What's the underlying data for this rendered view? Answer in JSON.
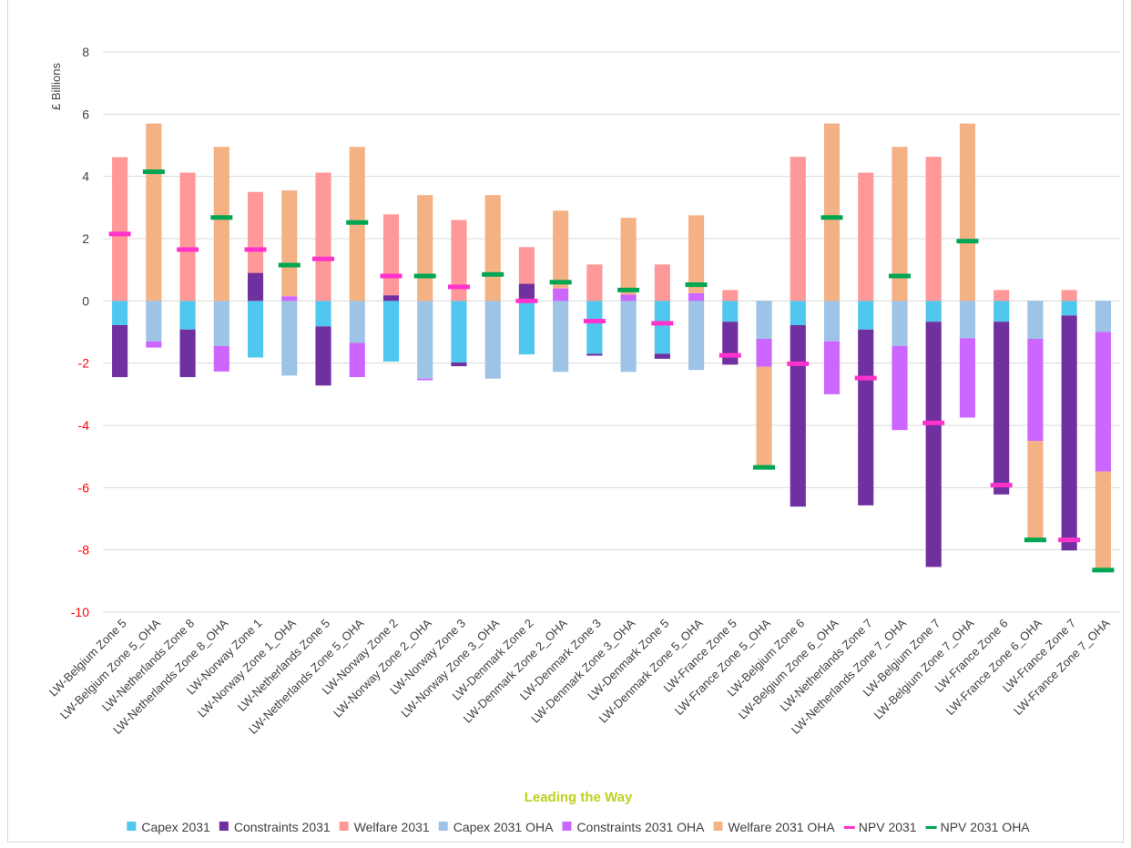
{
  "chart_data": {
    "type": "bar",
    "stacked": true,
    "xlabel": "Leading the Way",
    "ylabel": "£ Billions",
    "ylim": [
      -10,
      8
    ],
    "yticks": [
      8,
      6,
      4,
      2,
      0,
      -2,
      -4,
      -6,
      -8,
      -10
    ],
    "grid": true,
    "legend_position": "bottom",
    "colors": {
      "capex_2031": "#4fc7ee",
      "constraints_2031": "#7030a0",
      "welfare_2031": "#ff9999",
      "capex_2031_oha": "#9dc3e6",
      "constraints_2031_oha": "#cc66ff",
      "welfare_2031_oha": "#f4b183",
      "npv_2031": "#ff33cc",
      "npv_2031_oha": "#00a651",
      "negative_tick": "#ff0000",
      "positive_tick": "#404040",
      "xlabel_color": "#bfce1f"
    },
    "categories": [
      "LW-Belgium Zone 5",
      "LW-Belgium Zone 5_OHA",
      "LW-Netherlands Zone 8",
      "LW-Netherlands Zone 8_OHA",
      "LW-Norway Zone 1",
      "LW-Norway Zone 1_OHA",
      "LW-Netherlands Zone 5",
      "LW-Netherlands Zone 5_OHA",
      "LW-Norway Zone 2",
      "LW-Norway Zone 2_OHA",
      "LW-Norway Zone 3",
      "LW-Norway Zone 3_OHA",
      "LW-Denmark Zone 2",
      "LW-Denmark Zone 2_OHA",
      "LW-Denmark Zone 3",
      "LW-Denmark Zone 3_OHA",
      "LW-Denmark Zone 5",
      "LW-Denmark Zone 5_OHA",
      "LW-France Zone 5",
      "LW-France Zone 5_OHA",
      "LW-Belgium Zone 6",
      "LW-Belgium Zone 6_OHA",
      "LW-Netherlands Zone 7",
      "LW-Netherlands Zone 7_OHA",
      "LW-Belgium Zone 7",
      "LW-Belgium Zone 7_OHA",
      "LW-France Zone 6",
      "LW-France Zone 6_OHA",
      "LW-France Zone 7",
      "LW-France Zone 7_OHA"
    ],
    "series": [
      {
        "name": "Capex 2031",
        "key": "capex_2031",
        "kind": "bar",
        "values": [
          -0.78,
          0,
          -0.92,
          0,
          -1.82,
          0,
          -0.82,
          0,
          -1.95,
          0,
          -1.98,
          0,
          -1.72,
          0,
          -1.7,
          0,
          -1.7,
          0,
          -0.67,
          0,
          -0.78,
          0,
          -0.92,
          0,
          -0.67,
          0,
          -0.67,
          0,
          -0.47,
          0
        ]
      },
      {
        "name": "Constraints 2031",
        "key": "constraints_2031",
        "kind": "bar",
        "values": [
          -1.67,
          0,
          -1.53,
          0,
          0.9,
          0,
          -1.9,
          0,
          0.18,
          0,
          -0.12,
          0,
          0.55,
          0,
          -0.06,
          0,
          -0.16,
          0,
          -1.38,
          0,
          -5.83,
          0,
          -5.65,
          0,
          -7.88,
          0,
          -5.55,
          0,
          -7.55,
          0
        ]
      },
      {
        "name": "Welfare 2031",
        "key": "welfare_2031",
        "kind": "bar",
        "values": [
          4.62,
          0,
          4.12,
          0,
          2.6,
          0,
          4.12,
          0,
          2.6,
          0,
          2.6,
          0,
          1.18,
          0,
          1.17,
          0,
          1.17,
          0,
          0.35,
          0,
          4.63,
          0,
          4.12,
          0,
          4.63,
          0,
          0.35,
          0,
          0.35,
          0
        ]
      },
      {
        "name": "Capex 2031 OHA",
        "key": "capex_2031_oha",
        "kind": "bar",
        "values": [
          0,
          -1.3,
          0,
          -1.45,
          0,
          -2.4,
          0,
          -1.35,
          0,
          -2.5,
          0,
          -2.5,
          0,
          -2.28,
          0,
          -2.28,
          0,
          -2.22,
          0,
          -1.22,
          0,
          -1.3,
          0,
          -1.45,
          0,
          -1.2,
          0,
          -1.22,
          0,
          -1.0
        ]
      },
      {
        "name": "Constraints 2031 OHA",
        "key": "constraints_2031_oha",
        "kind": "bar",
        "values": [
          0,
          -0.2,
          0,
          -0.82,
          0,
          0.15,
          0,
          -1.1,
          0,
          -0.05,
          0,
          0,
          0,
          0.4,
          0,
          0.2,
          0,
          0.25,
          0,
          -0.9,
          0,
          -1.7,
          0,
          -2.7,
          0,
          -2.55,
          0,
          -3.28,
          0,
          -4.48
        ]
      },
      {
        "name": "Welfare 2031 OHA",
        "key": "welfare_2031_oha",
        "kind": "bar",
        "values": [
          0,
          5.7,
          0,
          4.95,
          0,
          3.4,
          0,
          4.95,
          0,
          3.4,
          0,
          3.4,
          0,
          2.5,
          0,
          2.47,
          0,
          2.5,
          0,
          -3.2,
          0,
          5.7,
          0,
          4.95,
          0,
          5.7,
          0,
          -3.15,
          0,
          -3.2
        ]
      },
      {
        "name": "NPV 2031",
        "key": "npv_2031",
        "kind": "marker",
        "values": [
          2.15,
          null,
          1.65,
          null,
          1.65,
          null,
          1.35,
          null,
          0.8,
          null,
          0.45,
          null,
          0.0,
          null,
          -0.65,
          null,
          -0.72,
          null,
          -1.75,
          null,
          -2.02,
          null,
          -2.48,
          null,
          -3.92,
          null,
          -5.92,
          null,
          -7.68,
          null
        ]
      },
      {
        "name": "NPV 2031 OHA",
        "key": "npv_2031_oha",
        "kind": "marker",
        "values": [
          null,
          4.15,
          null,
          2.68,
          null,
          1.15,
          null,
          2.52,
          null,
          0.8,
          null,
          0.85,
          null,
          0.6,
          null,
          0.35,
          null,
          0.52,
          null,
          -5.35,
          null,
          2.68,
          null,
          0.8,
          null,
          1.92,
          null,
          -7.68,
          null,
          -8.65
        ]
      }
    ]
  }
}
